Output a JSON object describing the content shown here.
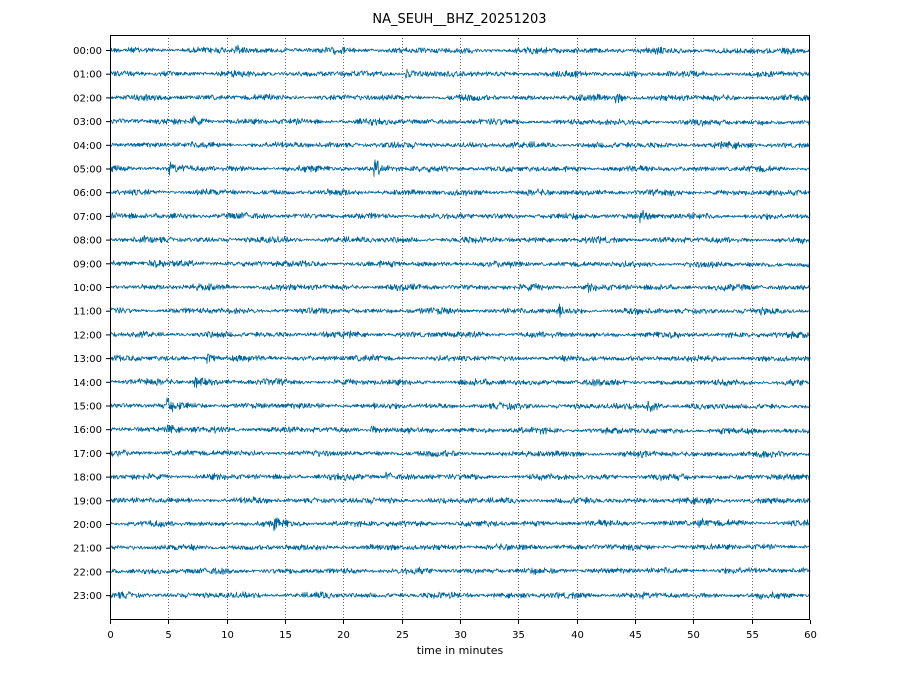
{
  "chart_data": {
    "type": "line",
    "title": "NA_SEUH__BHZ_20251203",
    "xlabel": "time in minutes",
    "xlim": [
      0,
      60
    ],
    "xticks": [
      0,
      5,
      10,
      15,
      20,
      25,
      30,
      35,
      40,
      45,
      50,
      55,
      60
    ],
    "grid": "vertical dotted at each 5 minutes",
    "trace_color": "#00689e",
    "rows": [
      "00:00",
      "01:00",
      "02:00",
      "03:00",
      "04:00",
      "05:00",
      "06:00",
      "07:00",
      "08:00",
      "09:00",
      "10:00",
      "11:00",
      "12:00",
      "13:00",
      "14:00",
      "15:00",
      "16:00",
      "17:00",
      "18:00",
      "19:00",
      "20:00",
      "21:00",
      "22:00",
      "23:00"
    ],
    "row_baseline_drift": [
      1.0,
      0.5,
      0.5,
      1.5,
      0.5,
      0.5,
      0.5,
      0.5,
      0.5,
      1.5,
      0.5,
      0.5,
      0.5,
      0.5,
      1.0,
      1.0,
      2.0,
      1.5,
      0.5,
      0.5,
      -1.0,
      -1.0,
      -1.0,
      0.5
    ],
    "events": [
      {
        "row": 0,
        "minute": 10.8,
        "amplitude": 2.2
      },
      {
        "row": 1,
        "minute": 25.5,
        "amplitude": 1.6
      },
      {
        "row": 2,
        "minute": 43.5,
        "amplitude": 1.8
      },
      {
        "row": 3,
        "minute": 7.2,
        "amplitude": 1.8
      },
      {
        "row": 5,
        "minute": 22.8,
        "amplitude": 3.0
      },
      {
        "row": 5,
        "minute": 5.2,
        "amplitude": 1.5
      },
      {
        "row": 7,
        "minute": 45.6,
        "amplitude": 2.0
      },
      {
        "row": 9,
        "minute": 3.5,
        "amplitude": 1.6
      },
      {
        "row": 10,
        "minute": 41.0,
        "amplitude": 1.6
      },
      {
        "row": 11,
        "minute": 38.5,
        "amplitude": 1.8
      },
      {
        "row": 13,
        "minute": 8.5,
        "amplitude": 1.6
      },
      {
        "row": 14,
        "minute": 7.4,
        "amplitude": 2.0
      },
      {
        "row": 15,
        "minute": 5.0,
        "amplitude": 2.0
      },
      {
        "row": 15,
        "minute": 46.2,
        "amplitude": 2.2
      },
      {
        "row": 16,
        "minute": 5.0,
        "amplitude": 1.6
      },
      {
        "row": 16,
        "minute": 22.5,
        "amplitude": 1.4
      },
      {
        "row": 18,
        "minute": 23.8,
        "amplitude": 1.5
      },
      {
        "row": 20,
        "minute": 14.2,
        "amplitude": 1.6
      },
      {
        "row": 20,
        "minute": 50.5,
        "amplitude": 1.6
      }
    ]
  }
}
